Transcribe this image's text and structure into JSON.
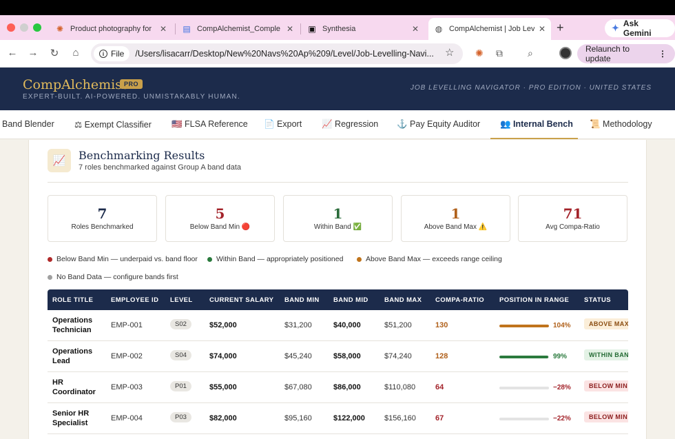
{
  "browser": {
    "tabs": [
      {
        "title": "Product photography for",
        "icon": "✺",
        "icon_color": "#d4622a"
      },
      {
        "title": "CompAlchemist_Comple",
        "icon": "▤",
        "icon_color": "#3b6fe0"
      },
      {
        "title": "Synthesia",
        "icon": "▣",
        "icon_color": "#111"
      },
      {
        "title": "CompAlchemist | Job Lev",
        "icon": "◍",
        "icon_color": "#444"
      }
    ],
    "gemini_label": "Ask Gemini",
    "file_chip": "File",
    "url": "/Users/lisacarr/Desktop/New%20Navs%20Ap%209/Level/Job-Levelling-Navi...",
    "relaunch_label": "Relaunch to update"
  },
  "app": {
    "brand": "CompAlchemist",
    "badge": "PRO",
    "tagline": "EXPERT-BUILT. AI-POWERED. UNMISTAKABLY HUMAN.",
    "header_right": "JOB LEVELLING NAVIGATOR · PRO EDITION · UNITED STATES"
  },
  "nav": [
    {
      "label": "Band Blender"
    },
    {
      "label": "⚖ Exempt Classifier"
    },
    {
      "label": "🇺🇸 FLSA Reference"
    },
    {
      "label": "📄 Export"
    },
    {
      "label": "📈 Regression"
    },
    {
      "label": "⚓ Pay Equity Auditor"
    },
    {
      "label": "👥 Internal Bench"
    },
    {
      "label": "📜 Methodology"
    }
  ],
  "section": {
    "icon": "📈",
    "title": "Benchmarking Results",
    "subtitle": "7 roles benchmarked against Group A band data"
  },
  "stats": [
    {
      "value": "7",
      "label": "Roles Benchmarked",
      "color": "#1c2b4b"
    },
    {
      "value": "5",
      "label": "Below Band Min 🔴",
      "color": "#a3232a"
    },
    {
      "value": "1",
      "label": "Within Band ✅",
      "color": "#2a6b3a"
    },
    {
      "value": "1",
      "label": "Above Band Max ⚠️",
      "color": "#b0601a"
    },
    {
      "value": "71",
      "label": "Avg Compa-Ratio",
      "color": "#a3232a"
    }
  ],
  "legend": [
    {
      "text": "Below Band Min — underpaid vs. band floor",
      "color": "#b02a2a"
    },
    {
      "text": "Within Band — appropriately positioned",
      "color": "#2a7a3d"
    },
    {
      "text": "Above Band Max — exceeds range ceiling",
      "color": "#c0741c"
    },
    {
      "text": "No Band Data — configure bands first",
      "color": "#a0a0a0"
    }
  ],
  "table": {
    "headers": [
      "ROLE TITLE",
      "EMPLOYEE ID",
      "LEVEL",
      "CURRENT SALARY",
      "BAND MIN",
      "BAND MID",
      "BAND MAX",
      "COMPA-RATIO",
      "POSITION IN RANGE",
      "STATUS"
    ],
    "rows": [
      {
        "role": "Operations Technician",
        "emp": "EMP-001",
        "level": "S02",
        "salary": "$52,000",
        "min": "$31,200",
        "mid": "$40,000",
        "max": "$51,200",
        "compa": "130",
        "compa_color": "#b0601a",
        "position": "104%",
        "position_fill": 1.0,
        "bar_color": "#c0741c",
        "status": "ABOVE MAX",
        "status_bg": "#fbeed9",
        "status_color": "#8a4c10"
      },
      {
        "role": "Operations Lead",
        "emp": "EMP-002",
        "level": "S04",
        "salary": "$74,000",
        "min": "$45,240",
        "mid": "$58,000",
        "max": "$74,240",
        "compa": "128",
        "compa_color": "#b0601a",
        "position": "99%",
        "position_fill": 0.99,
        "bar_color": "#2a7a3d",
        "status": "WITHIN BAND",
        "status_bg": "#e3f2e5",
        "status_color": "#236a33"
      },
      {
        "role": "HR Coordinator",
        "emp": "EMP-003",
        "level": "P01",
        "salary": "$55,000",
        "min": "$67,080",
        "mid": "$86,000",
        "max": "$110,080",
        "compa": "64",
        "compa_color": "#a3232a",
        "position": "−28%",
        "position_fill": 0,
        "bar_color": "#b02a2a",
        "status": "BELOW MIN",
        "status_bg": "#fbe3e3",
        "status_color": "#8c1e1e"
      },
      {
        "role": "Senior HR Specialist",
        "emp": "EMP-004",
        "level": "P03",
        "salary": "$82,000",
        "min": "$95,160",
        "mid": "$122,000",
        "max": "$156,160",
        "compa": "67",
        "compa_color": "#a3232a",
        "position": "−22%",
        "position_fill": 0,
        "bar_color": "#b02a2a",
        "status": "BELOW MIN",
        "status_bg": "#fbe3e3",
        "status_color": "#8c1e1e"
      }
    ]
  }
}
